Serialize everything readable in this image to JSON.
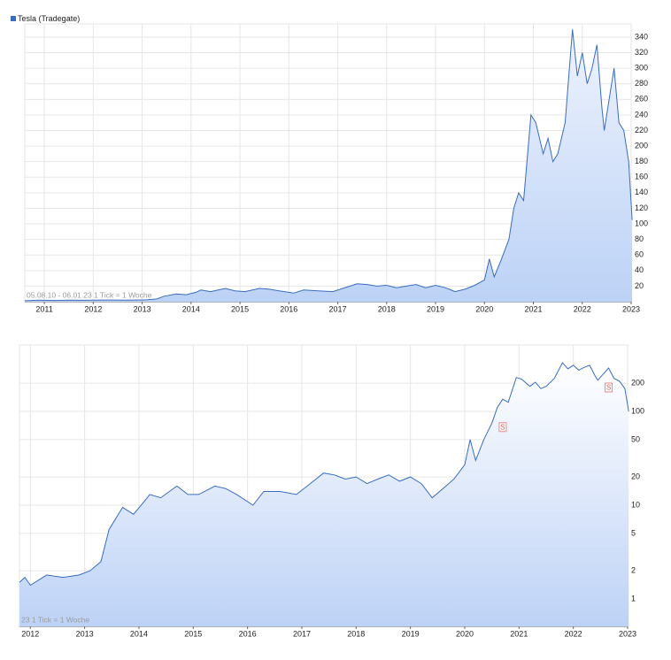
{
  "chart_data": [
    {
      "type": "area",
      "legend": "top-left",
      "grid": true,
      "log": false,
      "note": "05.08.10 - 06.01.23   1 Tick = 1 Woche",
      "x": [
        2010.6,
        2010.9,
        2011.2,
        2011.5,
        2011.8,
        2012.0,
        2012.3,
        2012.6,
        2012.9,
        2013.1,
        2013.3,
        2013.45,
        2013.7,
        2013.9,
        2014.1,
        2014.2,
        2014.4,
        2014.7,
        2014.9,
        2015.1,
        2015.4,
        2015.6,
        2015.8,
        2016.1,
        2016.3,
        2016.6,
        2016.9,
        2017.1,
        2017.4,
        2017.6,
        2017.8,
        2018.0,
        2018.2,
        2018.4,
        2018.6,
        2018.8,
        2019.0,
        2019.2,
        2019.4,
        2019.6,
        2019.8,
        2020.0,
        2020.1,
        2020.2,
        2020.35,
        2020.5,
        2020.6,
        2020.7,
        2020.8,
        2020.95,
        2021.05,
        2021.2,
        2021.3,
        2021.4,
        2021.5,
        2021.65,
        2021.8,
        2021.9,
        2022.0,
        2022.1,
        2022.2,
        2022.3,
        2022.4,
        2022.45,
        2022.55,
        2022.65,
        2022.75,
        2022.85,
        2022.95,
        2023.02
      ],
      "series": [
        {
          "name": "Tesla (Tradegate)",
          "color": "#3a6cc0",
          "values": [
            1.3,
            2.0,
            1.6,
            1.9,
            1.8,
            1.9,
            2.2,
            1.9,
            2.2,
            2.4,
            3.5,
            7,
            10,
            9,
            12,
            15,
            13,
            17,
            14,
            13,
            17,
            16,
            14,
            11,
            15,
            14,
            13,
            17,
            23,
            22,
            20,
            21,
            18,
            20,
            22,
            18,
            21,
            18,
            13,
            16,
            21,
            28,
            55,
            32,
            55,
            80,
            120,
            140,
            130,
            240,
            230,
            190,
            210,
            180,
            190,
            230,
            350,
            290,
            320,
            280,
            300,
            330,
            250,
            220,
            260,
            300,
            230,
            220,
            180,
            105
          ]
        }
      ],
      "xlim": [
        2010.6,
        2023.0
      ],
      "xticks": [
        2011,
        2012,
        2013,
        2014,
        2015,
        2016,
        2017,
        2018,
        2019,
        2020,
        2021,
        2022,
        2023
      ],
      "ylim": [
        0,
        357
      ],
      "yticks": [
        20,
        40,
        60,
        80,
        100,
        120,
        140,
        160,
        180,
        200,
        220,
        240,
        260,
        280,
        300,
        320,
        340
      ]
    },
    {
      "type": "area",
      "grid": true,
      "log": true,
      "note": "23   1 Tick = 1 Woche",
      "x": [
        2011.8,
        2011.9,
        2012.0,
        2012.3,
        2012.6,
        2012.9,
        2013.1,
        2013.3,
        2013.45,
        2013.7,
        2013.9,
        2014.1,
        2014.2,
        2014.4,
        2014.7,
        2014.9,
        2015.1,
        2015.4,
        2015.6,
        2015.8,
        2016.1,
        2016.3,
        2016.6,
        2016.9,
        2017.1,
        2017.4,
        2017.6,
        2017.8,
        2018.0,
        2018.2,
        2018.4,
        2018.6,
        2018.8,
        2019.0,
        2019.2,
        2019.4,
        2019.6,
        2019.8,
        2020.0,
        2020.1,
        2020.2,
        2020.35,
        2020.5,
        2020.6,
        2020.7,
        2020.8,
        2020.95,
        2021.05,
        2021.2,
        2021.3,
        2021.4,
        2021.5,
        2021.65,
        2021.8,
        2021.9,
        2022.0,
        2022.1,
        2022.2,
        2022.3,
        2022.4,
        2022.45,
        2022.55,
        2022.65,
        2022.75,
        2022.85,
        2022.95,
        2023.02
      ],
      "series": [
        {
          "color": "#3a6cc0",
          "values": [
            1.5,
            1.7,
            1.4,
            1.8,
            1.7,
            1.8,
            2.0,
            2.5,
            5.5,
            9.5,
            8,
            11,
            13,
            12,
            16,
            13,
            13,
            16,
            15,
            13,
            10,
            14,
            14,
            13,
            16,
            22,
            21,
            19,
            20,
            17,
            19,
            21,
            18,
            20,
            17,
            12,
            15,
            19,
            27,
            50,
            30,
            50,
            75,
            110,
            135,
            125,
            230,
            220,
            185,
            205,
            175,
            185,
            225,
            330,
            285,
            310,
            275,
            295,
            310,
            240,
            215,
            250,
            290,
            225,
            210,
            175,
            100
          ]
        }
      ],
      "annotations": [
        {
          "text": "S",
          "x": 2020.7,
          "y": 68
        },
        {
          "text": "S",
          "x": 2022.65,
          "y": 180
        }
      ],
      "xlim": [
        2011.8,
        2023.0
      ],
      "xticks": [
        2012,
        2013,
        2014,
        2015,
        2016,
        2017,
        2018,
        2019,
        2020,
        2021,
        2022,
        2023
      ],
      "ylim": [
        0.51,
        510
      ],
      "yticks": [
        1,
        2,
        5,
        10,
        20,
        50,
        100,
        200
      ]
    }
  ]
}
